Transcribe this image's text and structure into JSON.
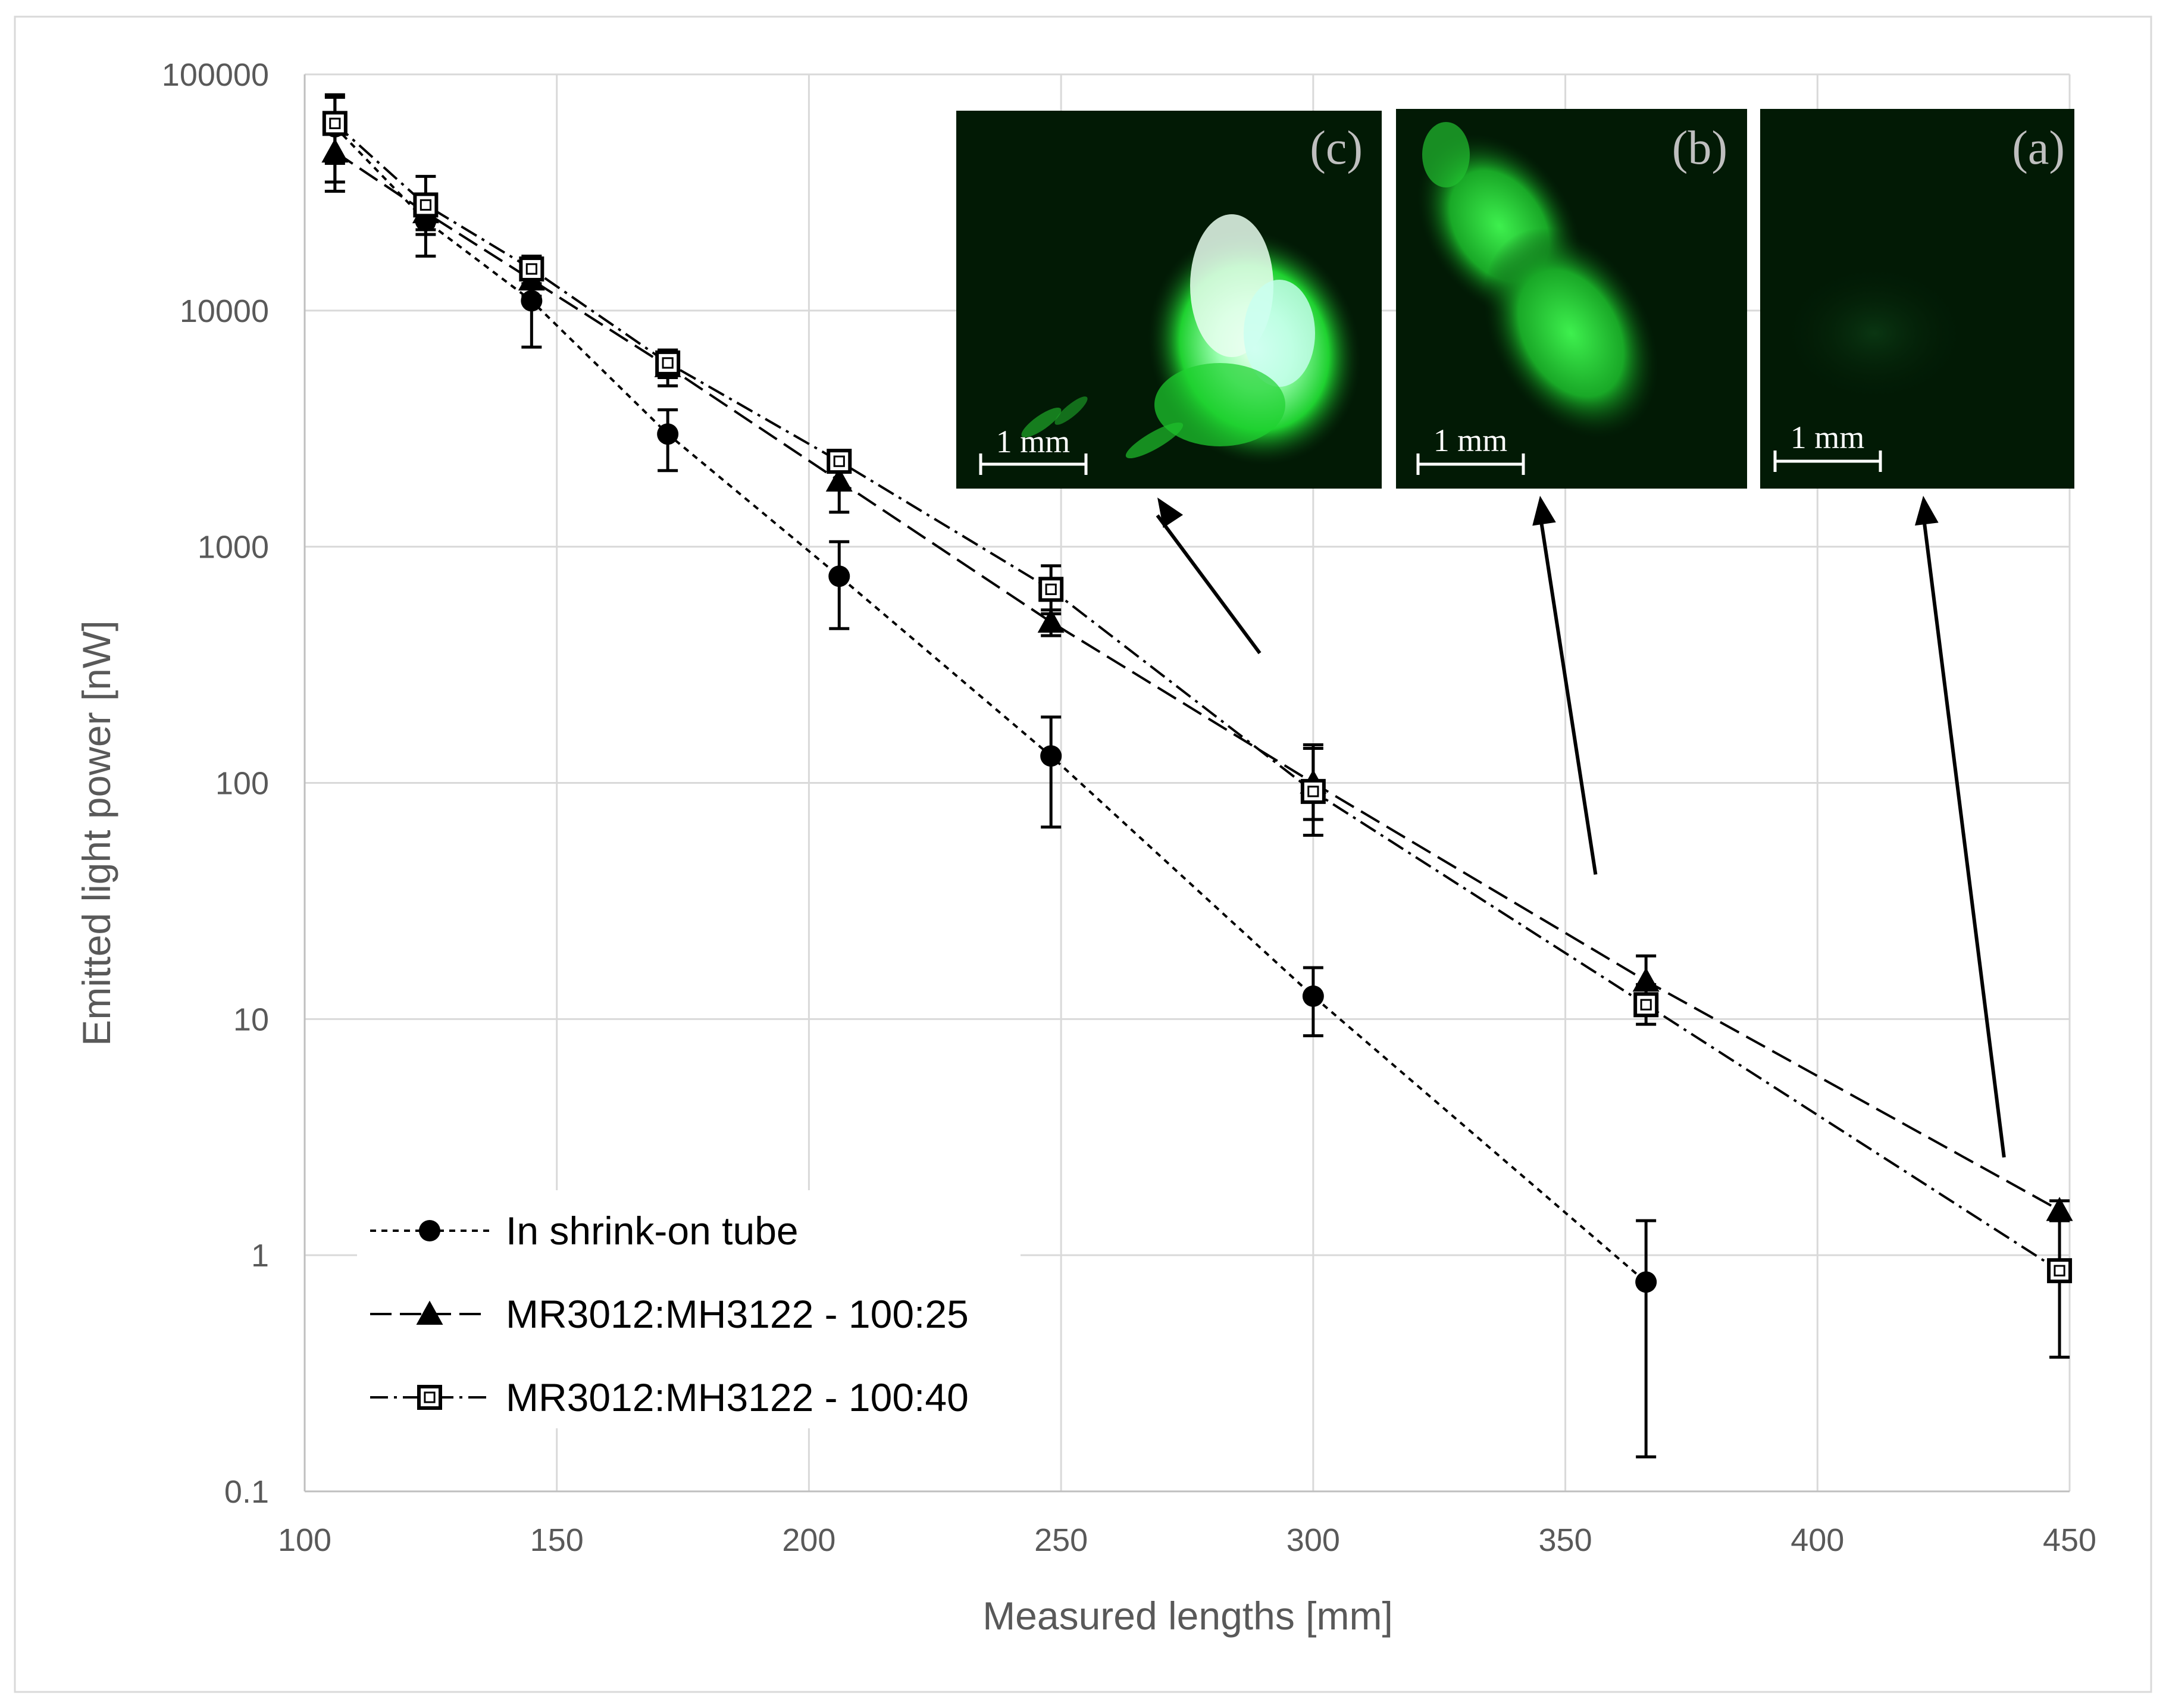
{
  "chart_data": {
    "type": "line",
    "xlabel": "Measured lengths [mm]",
    "ylabel": "Emitted light power [nW]",
    "xlim": [
      100,
      450
    ],
    "ylim": [
      0.1,
      100000
    ],
    "y_scale": "log",
    "grid": true,
    "legend_position": "bottom-left",
    "x_ticks": [
      "100",
      "150",
      "200",
      "250",
      "300",
      "350",
      "400",
      "450"
    ],
    "y_ticks": [
      "0.1",
      "1",
      "10",
      "100",
      "1000",
      "10000",
      "100000"
    ],
    "series": [
      {
        "name": "In shrink-on tube",
        "marker": "filled-circle",
        "line_style": "dotted",
        "x": [
          106,
          124,
          145,
          172,
          206,
          248,
          300,
          366
        ],
        "y": [
          60000,
          24000,
          11000,
          3000,
          750,
          130,
          12.5,
          0.77
        ],
        "err_low": [
          35000,
          17000,
          7000,
          2100,
          450,
          65,
          8.5,
          0.14
        ],
        "err_high": [
          80000,
          30000,
          14000,
          3800,
          1050,
          190,
          16.5,
          1.4
        ]
      },
      {
        "name": "MR3012:MH3122 - 100:25",
        "marker": "filled-triangle",
        "line_style": "dashed",
        "x": [
          106,
          124,
          145,
          172,
          206,
          248,
          300,
          366,
          448
        ],
        "y": [
          47000,
          26000,
          13500,
          5800,
          1900,
          480,
          100,
          14.5,
          1.55
        ],
        "err_low": [
          32000,
          21000,
          11500,
          4800,
          1400,
          420,
          70,
          11,
          1.4
        ],
        "err_high": [
          62000,
          31000,
          15500,
          6800,
          2400,
          540,
          140,
          18.5,
          1.7
        ]
      },
      {
        "name": "MR3012:MH3122 - 100:40",
        "marker": "open-square",
        "line_style": "dash-dot",
        "x": [
          106,
          124,
          145,
          172,
          206,
          248,
          300,
          366,
          448
        ],
        "y": [
          62000,
          28000,
          15000,
          6000,
          2300,
          660,
          92,
          11.5,
          0.86
        ],
        "err_low": [
          42000,
          22000,
          13000,
          5200,
          2100,
          520,
          60,
          9.5,
          0.37
        ],
        "err_high": [
          82000,
          37000,
          17000,
          6800,
          2500,
          830,
          145,
          14,
          1.4
        ]
      }
    ],
    "annotations": [
      {
        "label": "(c)",
        "scale_bar": "1 mm",
        "arrow_to": {
          "x": 290,
          "y": 140
        }
      },
      {
        "label": "(b)",
        "scale_bar": "1 mm",
        "arrow_to": {
          "x": 356,
          "y": 25
        }
      },
      {
        "label": "(a)",
        "scale_bar": "1 mm",
        "arrow_to": {
          "x": 437,
          "y": 2.0
        }
      }
    ]
  },
  "colors": {
    "grid": "#d9d9d9",
    "axis_text": "#595959",
    "series_line": "#000000",
    "inset_background": "#021a05",
    "glow_green": "#1fd130",
    "glow_white": "#e6fff0"
  }
}
